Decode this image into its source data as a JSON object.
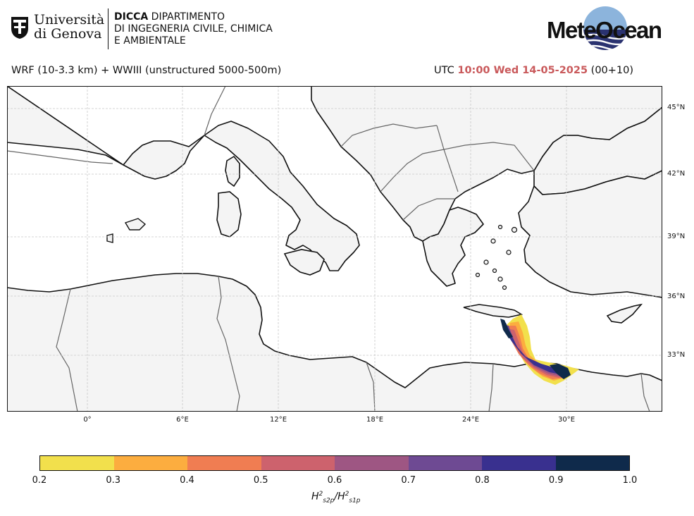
{
  "header": {
    "university_line1": "Università",
    "university_line2": "di Genova",
    "dept_bold": "DICCA",
    "dept_line1": "DIPARTIMENTO",
    "dept_line2": "DI INGEGNERIA CIVILE, CHIMICA",
    "dept_line3": "E AMBIENTALE",
    "logo_text": "MeteOcean"
  },
  "model_label": "WRF (10-3.3 km) + WWIII (unstructured 5000-500m)",
  "time": {
    "prefix": "UTC",
    "highlight": "10:00 Wed 14-05-2025",
    "suffix": "(00+10)",
    "highlight_color": "#c9595b"
  },
  "map": {
    "land_color": "#f4f4f4",
    "sea_color": "#ffffff",
    "lat_labels": [
      "45°N",
      "42°N",
      "39°N",
      "36°N",
      "33°N"
    ],
    "lon_labels": [
      "0°",
      "6°E",
      "12°E",
      "18°E",
      "24°E",
      "30°E"
    ]
  },
  "colorbar": {
    "ticks": [
      "0.2",
      "0.3",
      "0.4",
      "0.5",
      "0.6",
      "0.7",
      "0.8",
      "0.9",
      "1.0"
    ],
    "colors": [
      "#f2e04c",
      "#fcad3f",
      "#f07d52",
      "#cd626d",
      "#9e5683",
      "#6e4a93",
      "#39308f",
      "#0f2a4b"
    ],
    "label_base": "H",
    "label_sup": "2",
    "label_sub1": "s2p",
    "label_sub2": "s1p"
  }
}
